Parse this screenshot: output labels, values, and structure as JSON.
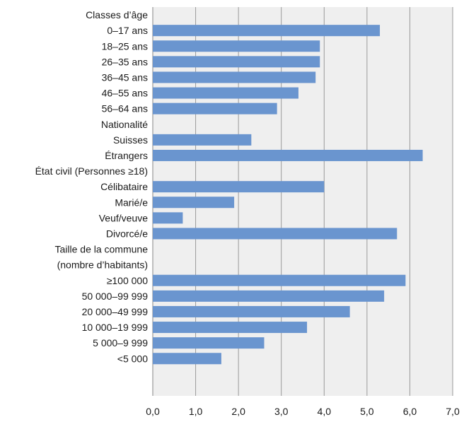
{
  "chart_data": {
    "type": "bar",
    "orientation": "horizontal",
    "bar_color": "#6a95cf",
    "plot_background": "#efefef",
    "grid": true,
    "xlim": [
      0,
      7
    ],
    "x_ticks": [
      "0,0",
      "1,0",
      "2,0",
      "3,0",
      "4,0",
      "5,0",
      "6,0",
      "7,0"
    ],
    "groups": [
      {
        "title": [
          "Classes d’âge"
        ],
        "categories": [
          "0–17 ans",
          "18–25 ans",
          "26–35 ans",
          "36–45 ans",
          "46–55 ans",
          "56–64 ans"
        ],
        "values": [
          5.3,
          3.9,
          3.9,
          3.8,
          3.4,
          2.9
        ]
      },
      {
        "title": [
          "Nationalité"
        ],
        "categories": [
          "Suisses",
          "Étrangers"
        ],
        "values": [
          2.3,
          6.3
        ]
      },
      {
        "title": [
          "État civil (Personnes ≥18)"
        ],
        "categories": [
          "Célibataire",
          "Marié/e",
          "Veuf/veuve",
          "Divorcé/e"
        ],
        "values": [
          4.0,
          1.9,
          0.7,
          5.7
        ]
      },
      {
        "title": [
          "Taille de la commune",
          "(nombre d’habitants)"
        ],
        "categories": [
          "≥100 000",
          "50 000–99 999",
          "20 000–49 999",
          "10 000–19 999",
          "5 000–9 999",
          "<5 000"
        ],
        "values": [
          5.9,
          5.4,
          4.6,
          3.6,
          2.6,
          1.6
        ]
      }
    ]
  }
}
